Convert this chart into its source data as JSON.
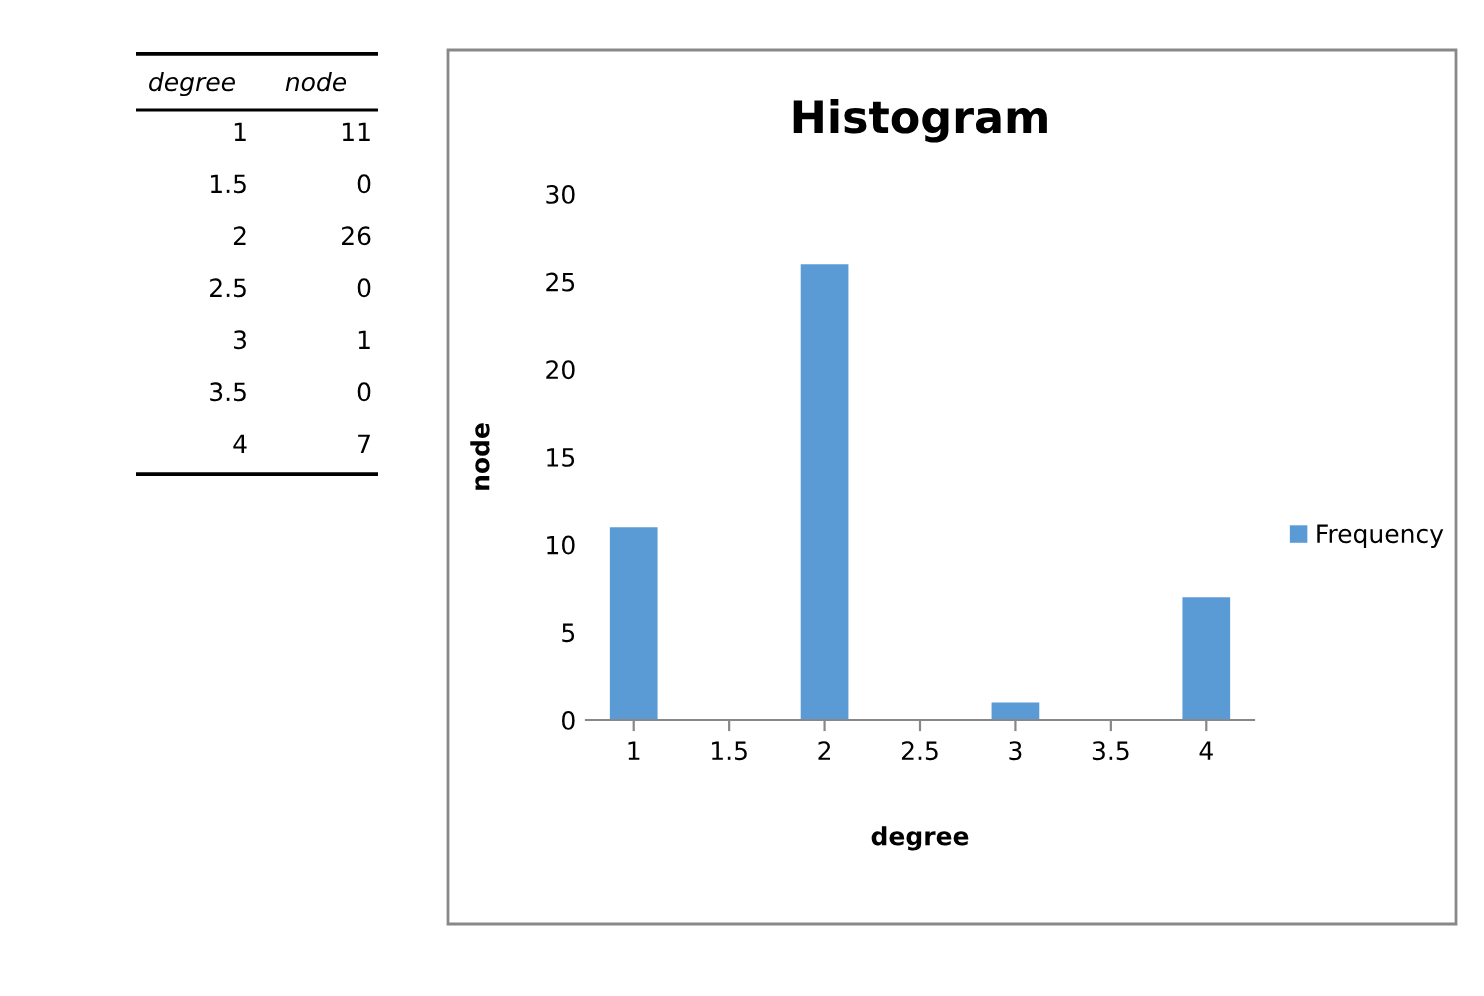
{
  "chart_data": {
    "type": "bar",
    "title": "Histogram",
    "xlabel": "degree",
    "ylabel": "node",
    "categories": [
      "1",
      "1.5",
      "2",
      "2.5",
      "3",
      "3.5",
      "4"
    ],
    "series": [
      {
        "name": "Frequency",
        "color": "#5b9bd5",
        "values": [
          11,
          0,
          26,
          0,
          1,
          0,
          7
        ]
      }
    ],
    "ylim": [
      0,
      30
    ],
    "yticks": [
      0,
      5,
      10,
      15,
      20,
      25,
      30
    ],
    "grid": false,
    "legend": "right",
    "annotations": [
      "degree",
      "node",
      "1",
      "11",
      "1.5",
      "0",
      "2",
      "26",
      "2.5",
      "0",
      "3",
      "1",
      "3.5",
      "0",
      "4",
      "7"
    ]
  }
}
